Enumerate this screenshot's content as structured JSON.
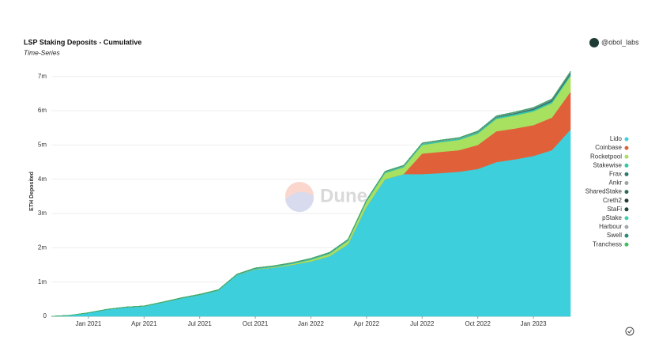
{
  "chart_data": {
    "type": "stacked_area",
    "title": "LSP Staking Deposits - Cumulative",
    "subtitle": "Time-Series",
    "author": "@obol_labs",
    "watermark": "Dune",
    "y_label": "ETH Deposited",
    "x": [
      "2020-11",
      "2020-12",
      "2021-01",
      "2021-02",
      "2021-03",
      "2021-04",
      "2021-05",
      "2021-06",
      "2021-07",
      "2021-08",
      "2021-09",
      "2021-10",
      "2021-11",
      "2021-12",
      "2022-01",
      "2022-02",
      "2022-03",
      "2022-04",
      "2022-05",
      "2022-06",
      "2022-07",
      "2022-08",
      "2022-09",
      "2022-10",
      "2022-11",
      "2022-12",
      "2023-01",
      "2023-02",
      "2023-03"
    ],
    "xlim": [
      "2020-11",
      "2023-03"
    ],
    "xticks": [
      {
        "value": "2021-01",
        "label": "Jan 2021"
      },
      {
        "value": "2021-04",
        "label": "Apr 2021"
      },
      {
        "value": "2021-07",
        "label": "Jul 2021"
      },
      {
        "value": "2021-10",
        "label": "Oct 2021"
      },
      {
        "value": "2022-01",
        "label": "Jan 2022"
      },
      {
        "value": "2022-04",
        "label": "Apr 2022"
      },
      {
        "value": "2022-07",
        "label": "Jul 2022"
      },
      {
        "value": "2022-10",
        "label": "Oct 2022"
      },
      {
        "value": "2023-01",
        "label": "Jan 2023"
      }
    ],
    "ylim": [
      0,
      7270000
    ],
    "yticks": [
      0,
      {
        "value": 1000000,
        "label": "1m"
      },
      {
        "value": 2000000,
        "label": "2m"
      },
      {
        "value": 3000000,
        "label": "3m"
      },
      {
        "value": 4000000,
        "label": "4m"
      },
      {
        "value": 5000000,
        "label": "5m"
      },
      {
        "value": 6000000,
        "label": "6m"
      },
      {
        "value": 7000000,
        "label": "7m"
      }
    ],
    "grid": true,
    "legend": "right",
    "series": [
      {
        "name": "Lido",
        "color": "#3dd0dc",
        "values": [
          0,
          30000,
          100000,
          200000,
          260000,
          290000,
          400000,
          520000,
          620000,
          750000,
          1200000,
          1370000,
          1420000,
          1500000,
          1600000,
          1750000,
          2100000,
          3200000,
          4000000,
          4150000,
          4150000,
          4180000,
          4220000,
          4300000,
          4500000,
          4580000,
          4680000,
          4850000,
          5450000
        ]
      },
      {
        "name": "Coinbase",
        "color": "#e0603a",
        "values": [
          0,
          0,
          0,
          0,
          0,
          0,
          0,
          0,
          0,
          0,
          0,
          0,
          0,
          0,
          0,
          0,
          0,
          0,
          0,
          0,
          600000,
          620000,
          630000,
          700000,
          900000,
          900000,
          900000,
          950000,
          1100000
        ]
      },
      {
        "name": "Rocketpool",
        "color": "#a8e05f",
        "values": [
          0,
          0,
          0,
          0,
          0,
          0,
          0,
          0,
          0,
          0,
          0,
          10000,
          20000,
          30000,
          50000,
          70000,
          100000,
          150000,
          180000,
          200000,
          250000,
          280000,
          300000,
          330000,
          360000,
          380000,
          400000,
          420000,
          460000
        ]
      },
      {
        "name": "Stakewise",
        "color": "#37c6a8",
        "values": [
          0,
          0,
          0,
          0,
          5000,
          8000,
          10000,
          12000,
          14000,
          16000,
          18000,
          20000,
          22000,
          24000,
          26000,
          28000,
          30000,
          32000,
          34000,
          36000,
          38000,
          40000,
          41000,
          42000,
          43000,
          44000,
          45000,
          46000,
          47000
        ]
      },
      {
        "name": "Frax",
        "color": "#2f7a6c",
        "values": [
          0,
          0,
          0,
          0,
          0,
          0,
          0,
          0,
          0,
          0,
          0,
          0,
          0,
          0,
          0,
          0,
          0,
          0,
          0,
          0,
          0,
          0,
          0,
          10000,
          20000,
          30000,
          40000,
          50000,
          60000
        ]
      },
      {
        "name": "Ankr",
        "color": "#9ca3a3",
        "values": [
          0,
          0,
          0,
          0,
          0,
          0,
          1000,
          2000,
          3000,
          4000,
          5000,
          6000,
          7000,
          8000,
          9000,
          10000,
          11000,
          12000,
          13000,
          14000,
          15000,
          16000,
          17000,
          18000,
          19000,
          20000,
          21000,
          22000,
          23000
        ]
      },
      {
        "name": "SharedStake",
        "color": "#2d6b5f",
        "values": [
          0,
          0,
          2000,
          2000,
          2000,
          2000,
          2000,
          2000,
          2000,
          2000,
          2000,
          2000,
          2000,
          2000,
          2000,
          2000,
          2000,
          2000,
          2000,
          2000,
          2000,
          2000,
          2000,
          2000,
          2000,
          2000,
          2000,
          2000,
          2000
        ]
      },
      {
        "name": "Creth2",
        "color": "#203a35",
        "values": [
          0,
          0,
          3000,
          3000,
          3000,
          3000,
          3000,
          3000,
          3000,
          3000,
          3000,
          3000,
          3000,
          3000,
          3000,
          3000,
          3000,
          3000,
          3000,
          3000,
          3000,
          3000,
          3000,
          3000,
          3000,
          3000,
          3000,
          3000,
          3000
        ]
      },
      {
        "name": "StaFi",
        "color": "#1c4a3f",
        "values": [
          0,
          0,
          0,
          0,
          0,
          0,
          0,
          1000,
          1000,
          1000,
          1000,
          1000,
          1000,
          1000,
          1000,
          1000,
          1000,
          1000,
          1000,
          1000,
          1000,
          1000,
          1000,
          1000,
          1000,
          1000,
          1000,
          1000,
          1000
        ]
      },
      {
        "name": "pStake",
        "color": "#3fd1b0",
        "values": [
          0,
          0,
          0,
          0,
          0,
          0,
          0,
          0,
          0,
          0,
          0,
          0,
          0,
          0,
          0,
          2000,
          2000,
          2000,
          2000,
          2000,
          2000,
          2000,
          2000,
          2000,
          2000,
          2000,
          2000,
          2000,
          2000
        ]
      },
      {
        "name": "Harbour",
        "color": "#a0a8b0",
        "values": [
          0,
          0,
          0,
          0,
          0,
          0,
          0,
          0,
          0,
          0,
          0,
          0,
          0,
          0,
          0,
          0,
          0,
          0,
          0,
          0,
          0,
          1000,
          1000,
          1000,
          1000,
          1000,
          1000,
          1000,
          1000
        ]
      },
      {
        "name": "Swell",
        "color": "#2e8a74",
        "values": [
          0,
          0,
          0,
          0,
          0,
          0,
          0,
          0,
          0,
          0,
          0,
          0,
          0,
          0,
          0,
          0,
          0,
          0,
          0,
          0,
          0,
          0,
          0,
          0,
          0,
          0,
          0,
          1000,
          1000
        ]
      },
      {
        "name": "Tranchess",
        "color": "#40c060",
        "values": [
          0,
          0,
          0,
          0,
          0,
          0,
          0,
          0,
          0,
          0,
          0,
          0,
          0,
          0,
          0,
          0,
          0,
          0,
          0,
          0,
          0,
          0,
          0,
          1000,
          1000,
          1000,
          1000,
          1000,
          1000
        ]
      }
    ]
  }
}
